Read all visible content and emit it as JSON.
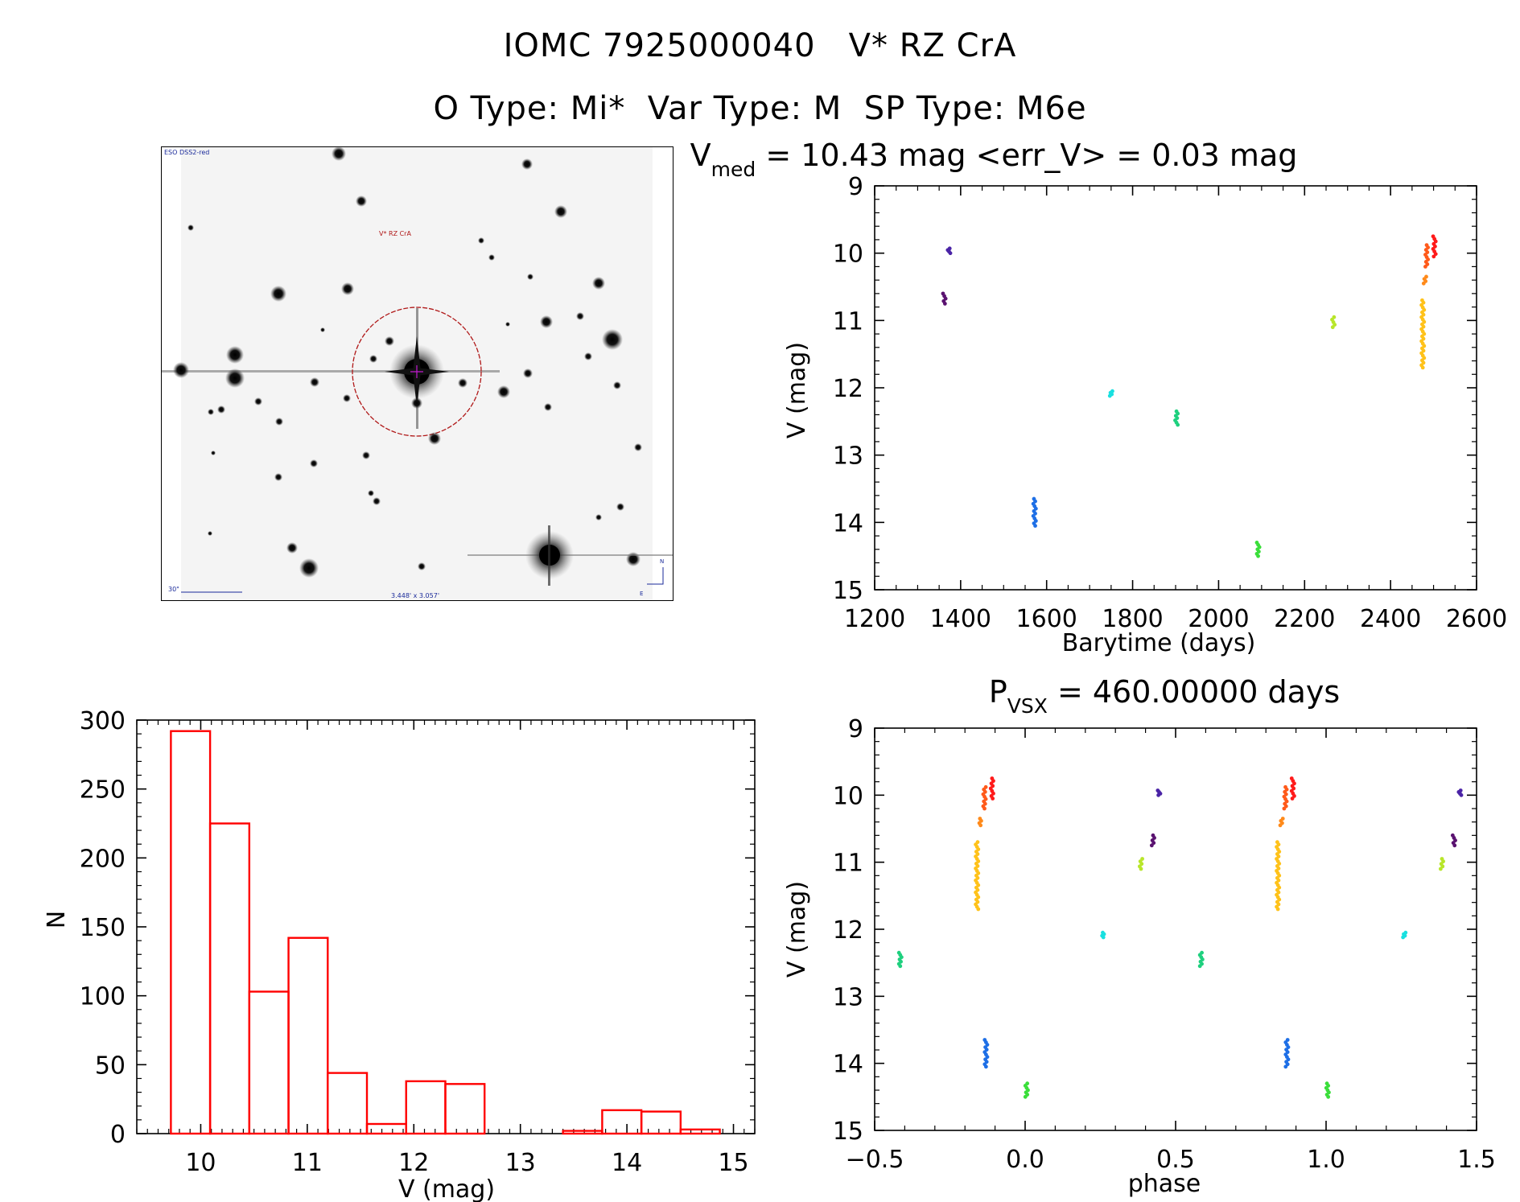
{
  "header": {
    "line1": "IOMC 7925000040   V* RZ CrA",
    "line2": "O Type: Mi*  Var Type: M  SP Type: M6e"
  },
  "sky_image": {
    "survey_label": "ESO DSS2-red",
    "target_label": "V* RZ CrA",
    "scale_label": "30\"",
    "fov_label": "3.448' x 3.057'",
    "north_label": "N",
    "east_label": "E"
  },
  "colors": {
    "hist": "#ff0000",
    "circle": "#b01818",
    "axis": "#000000"
  },
  "chart_data": [
    {
      "id": "lightcurve",
      "type": "scatter",
      "title_prefix": "V",
      "title_sub": "med",
      "title_rest": " = 10.43 mag <err_V> = 0.03 mag",
      "xlabel": "Barytime (days)",
      "ylabel": "V (mag)",
      "xlim": [
        1200,
        2600
      ],
      "ylim": [
        15,
        9
      ],
      "xticks": [
        1200,
        1400,
        1600,
        1800,
        2000,
        2200,
        2400,
        2600
      ],
      "yticks": [
        9,
        10,
        11,
        12,
        13,
        14,
        15
      ],
      "groups": [
        {
          "x": 1362,
          "y": [
            10.6,
            10.75
          ],
          "color": "#5a1270"
        },
        {
          "x": 1373,
          "y": [
            9.93,
            10.0
          ],
          "color": "#4a23a6"
        },
        {
          "x": 1572,
          "y": [
            13.65,
            14.05
          ],
          "color": "#1e6fe6"
        },
        {
          "x": 1750,
          "y": [
            12.05,
            12.12
          ],
          "color": "#19e0e0"
        },
        {
          "x": 1902,
          "y": [
            12.35,
            12.55
          ],
          "color": "#1ed07e"
        },
        {
          "x": 2092,
          "y": [
            14.3,
            14.5
          ],
          "color": "#3ade3a"
        },
        {
          "x": 2267,
          "y": [
            10.95,
            11.1
          ],
          "color": "#b8e62a"
        },
        {
          "x": 2475,
          "y": [
            10.7,
            11.7
          ],
          "color": "#ffc21a"
        },
        {
          "x": 2480,
          "y": [
            10.35,
            10.45
          ],
          "color": "#ff8a1a"
        },
        {
          "x": 2484,
          "y": [
            9.88,
            10.2
          ],
          "color": "#ff5a1a"
        },
        {
          "x": 2502,
          "y": [
            9.75,
            10.05
          ],
          "color": "#ff1a1a"
        }
      ]
    },
    {
      "id": "histogram",
      "type": "bar",
      "xlabel": "V (mag)",
      "ylabel": "N",
      "xlim": [
        9.4,
        15.2
      ],
      "ylim": [
        0,
        300
      ],
      "xticks": [
        10,
        11,
        12,
        13,
        14,
        15
      ],
      "yticks": [
        0,
        50,
        100,
        150,
        200,
        250,
        300
      ],
      "bin_start": 9.72,
      "bin_width": 0.368,
      "counts": [
        292,
        225,
        103,
        142,
        44,
        7,
        38,
        36,
        0,
        0,
        2,
        17,
        16,
        3
      ]
    },
    {
      "id": "phased",
      "type": "scatter",
      "title_prefix": "P",
      "title_sub": "VSX",
      "title_rest": " = 460.00000 days",
      "xlabel": "phase",
      "ylabel": "V (mag)",
      "xlim": [
        -0.5,
        1.5
      ],
      "ylim": [
        15,
        9
      ],
      "xticks": [
        -0.5,
        0.0,
        0.5,
        1.0,
        1.5
      ],
      "xtick_labels": [
        "−0.5",
        "0.0",
        "0.5",
        "1.0",
        "1.5"
      ],
      "yticks": [
        9,
        10,
        11,
        12,
        13,
        14,
        15
      ],
      "groups": [
        {
          "x": -0.415,
          "y": [
            12.35,
            12.55
          ],
          "color": "#1ed07e"
        },
        {
          "x": -0.16,
          "y": [
            10.7,
            11.7
          ],
          "color": "#ffc21a"
        },
        {
          "x": -0.148,
          "y": [
            10.35,
            10.45
          ],
          "color": "#ff8a1a"
        },
        {
          "x": -0.135,
          "y": [
            9.88,
            10.2
          ],
          "color": "#ff5a1a"
        },
        {
          "x": -0.11,
          "y": [
            9.75,
            10.05
          ],
          "color": "#ff1a1a"
        },
        {
          "x": -0.13,
          "y": [
            13.65,
            14.05
          ],
          "color": "#1e6fe6"
        },
        {
          "x": 0.005,
          "y": [
            14.3,
            14.5
          ],
          "color": "#3ade3a"
        },
        {
          "x": 0.26,
          "y": [
            12.05,
            12.12
          ],
          "color": "#19e0e0"
        },
        {
          "x": 0.385,
          "y": [
            10.95,
            11.1
          ],
          "color": "#b8e62a"
        },
        {
          "x": 0.425,
          "y": [
            10.6,
            10.75
          ],
          "color": "#5a1270"
        },
        {
          "x": 0.445,
          "y": [
            9.93,
            10.0
          ],
          "color": "#4a23a6"
        },
        {
          "x": 0.585,
          "y": [
            12.35,
            12.55
          ],
          "color": "#1ed07e"
        },
        {
          "x": 0.84,
          "y": [
            10.7,
            11.7
          ],
          "color": "#ffc21a"
        },
        {
          "x": 0.852,
          "y": [
            10.35,
            10.45
          ],
          "color": "#ff8a1a"
        },
        {
          "x": 0.865,
          "y": [
            9.88,
            10.2
          ],
          "color": "#ff5a1a"
        },
        {
          "x": 0.89,
          "y": [
            9.75,
            10.05
          ],
          "color": "#ff1a1a"
        },
        {
          "x": 0.87,
          "y": [
            13.65,
            14.05
          ],
          "color": "#1e6fe6"
        },
        {
          "x": 1.005,
          "y": [
            14.3,
            14.5
          ],
          "color": "#3ade3a"
        },
        {
          "x": 1.26,
          "y": [
            12.05,
            12.12
          ],
          "color": "#19e0e0"
        },
        {
          "x": 1.385,
          "y": [
            10.95,
            11.1
          ],
          "color": "#b8e62a"
        },
        {
          "x": 1.425,
          "y": [
            10.6,
            10.75
          ],
          "color": "#5a1270"
        },
        {
          "x": 1.445,
          "y": [
            9.93,
            10.0
          ],
          "color": "#4a23a6"
        }
      ]
    }
  ]
}
